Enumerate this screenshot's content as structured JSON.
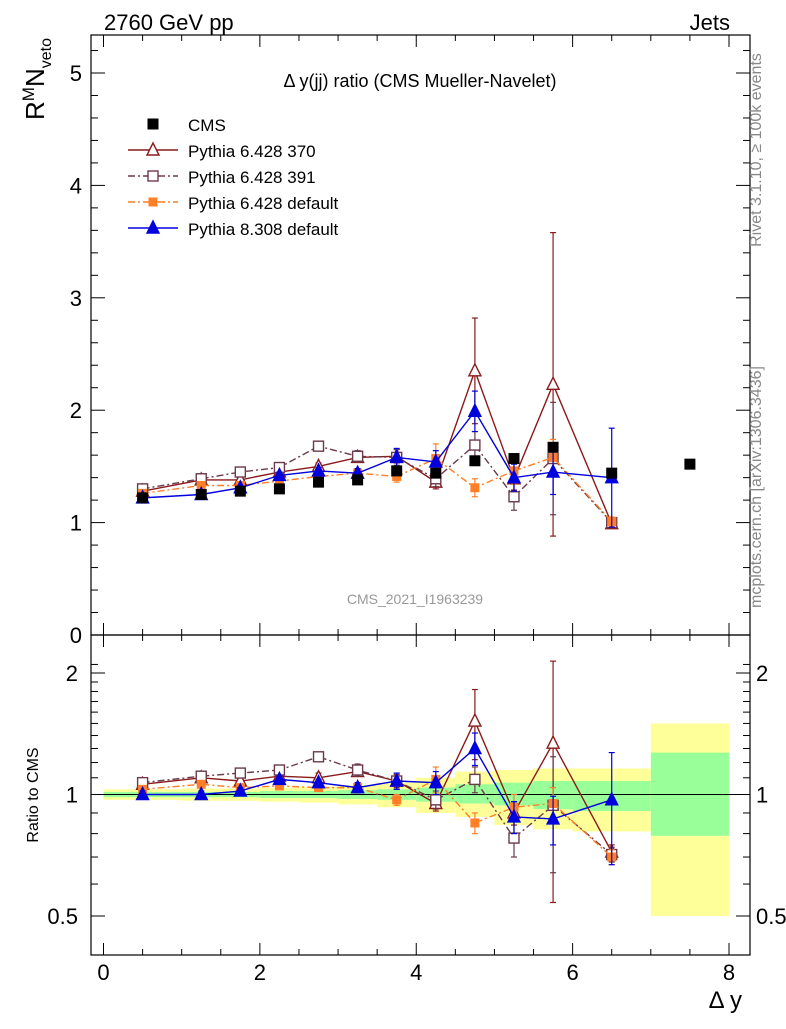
{
  "header": {
    "left": "2760 GeV pp",
    "right": "Jets"
  },
  "side_text": {
    "rivet": "Rivet 3.1.10, ≥ 100k events",
    "mcplots": "mcplots.cern.ch [arXiv:1306.3436]"
  },
  "chart_data": {
    "type": "scatter",
    "title": "Δ y(jj) ratio (CMS Mueller-Navelet)",
    "analysis_id": "CMS_2021_I1963239",
    "xlabel": "Δ y",
    "ylabel": "R^M N_veto",
    "ratio_ylabel": "Ratio to CMS",
    "xlim": [
      -0.2,
      8.2
    ],
    "ylim": [
      0,
      5.35
    ],
    "ratio_ylim": [
      0.42,
      2.25
    ],
    "x_ticks": [
      "0",
      "2",
      "4",
      "6",
      "8"
    ],
    "y_ticks": [
      "0",
      "1",
      "2",
      "3",
      "4",
      "5"
    ],
    "ratio_ticks": [
      "0.5",
      "1",
      "2"
    ],
    "legend_position": "top-left",
    "data": {
      "name": "CMS",
      "color": "#000000",
      "x": [
        0.5,
        1.25,
        1.75,
        2.25,
        2.75,
        3.25,
        3.75,
        4.25,
        4.75,
        5.25,
        5.75,
        6.5,
        7.5
      ],
      "y": [
        1.22,
        1.25,
        1.28,
        1.3,
        1.36,
        1.38,
        1.46,
        1.44,
        1.55,
        1.57,
        1.67,
        1.44,
        1.52
      ]
    },
    "uncertainty_bands": {
      "edges": [
        0,
        0.5,
        1,
        1.5,
        2,
        2.5,
        3,
        3.5,
        4,
        4.5,
        5,
        5.5,
        6,
        7,
        8
      ],
      "stat_lo": [
        0.985,
        0.985,
        0.985,
        0.985,
        0.98,
        0.98,
        0.975,
        0.97,
        0.96,
        0.95,
        0.94,
        0.92,
        0.91,
        0.79
      ],
      "stat_hi": [
        1.015,
        1.015,
        1.015,
        1.015,
        1.02,
        1.02,
        1.025,
        1.03,
        1.04,
        1.06,
        1.07,
        1.08,
        1.08,
        1.27
      ],
      "total_lo": [
        0.97,
        0.97,
        0.965,
        0.965,
        0.96,
        0.955,
        0.945,
        0.93,
        0.9,
        0.88,
        0.84,
        0.82,
        0.81,
        0.5
      ],
      "total_hi": [
        1.03,
        1.03,
        1.035,
        1.035,
        1.04,
        1.045,
        1.055,
        1.07,
        1.1,
        1.14,
        1.15,
        1.16,
        1.16,
        1.5
      ],
      "stat_color": "#99ff99",
      "total_color": "#ffff99"
    },
    "series": [
      {
        "name": "Pythia 6.428 370",
        "color": "#8b1a1a",
        "marker": "triangle-open",
        "dash": "solid",
        "x": [
          0.5,
          1.25,
          1.75,
          2.25,
          2.75,
          3.25,
          3.75,
          4.25,
          4.75,
          5.25,
          5.75,
          6.5
        ],
        "y": [
          1.28,
          1.38,
          1.38,
          1.45,
          1.5,
          1.58,
          1.59,
          1.36,
          2.35,
          1.39,
          2.23,
          0.99
        ],
        "err": [
          0.02,
          0.02,
          0.02,
          0.02,
          0.03,
          0.04,
          0.06,
          0.06,
          0.47,
          0.1,
          1.35,
          0.04
        ],
        "ratio": [
          1.06,
          1.1,
          1.08,
          1.11,
          1.1,
          1.14,
          1.08,
          0.95,
          1.52,
          0.9,
          1.34,
          0.72
        ],
        "ratio_err": [
          0.02,
          0.02,
          0.02,
          0.02,
          0.03,
          0.03,
          0.04,
          0.04,
          0.3,
          0.06,
          0.8,
          0.03
        ]
      },
      {
        "name": "Pythia 6.428 391",
        "color": "#6b3a4a",
        "marker": "square-open",
        "dash": "dashdot",
        "x": [
          0.5,
          1.25,
          1.75,
          2.25,
          2.75,
          3.25,
          3.75,
          4.25,
          4.75,
          5.25,
          5.75,
          6.5
        ],
        "y": [
          1.3,
          1.39,
          1.45,
          1.49,
          1.68,
          1.59,
          1.58,
          1.39,
          1.69,
          1.23,
          1.57,
          1.0
        ],
        "err": [
          0.02,
          0.02,
          0.02,
          0.03,
          0.04,
          0.05,
          0.07,
          0.07,
          0.12,
          0.12,
          0.5,
          0.04
        ],
        "ratio": [
          1.07,
          1.11,
          1.13,
          1.15,
          1.24,
          1.15,
          1.08,
          0.97,
          1.09,
          0.78,
          0.94,
          0.71
        ],
        "ratio_err": [
          0.02,
          0.02,
          0.02,
          0.02,
          0.03,
          0.04,
          0.05,
          0.05,
          0.08,
          0.08,
          0.3,
          0.03
        ]
      },
      {
        "name": "Pythia 6.428 default",
        "color": "#ff7f27",
        "marker": "square-filled",
        "dash": "dashdot",
        "x": [
          0.5,
          1.25,
          1.75,
          2.25,
          2.75,
          3.25,
          3.75,
          4.25,
          4.75,
          5.25,
          5.75,
          6.5
        ],
        "y": [
          1.26,
          1.33,
          1.33,
          1.37,
          1.41,
          1.44,
          1.41,
          1.57,
          1.31,
          1.46,
          1.58,
          1.01
        ],
        "err": [
          0.02,
          0.02,
          0.02,
          0.02,
          0.03,
          0.04,
          0.05,
          0.13,
          0.08,
          0.12,
          0.16,
          0.04
        ],
        "ratio": [
          1.03,
          1.06,
          1.04,
          1.05,
          1.04,
          1.04,
          0.97,
          1.09,
          0.85,
          0.93,
          0.95,
          0.7
        ],
        "ratio_err": [
          0.02,
          0.02,
          0.02,
          0.02,
          0.02,
          0.03,
          0.03,
          0.08,
          0.05,
          0.07,
          0.09,
          0.03
        ]
      },
      {
        "name": "Pythia 8.308 default",
        "color": "#0000dd",
        "marker": "triangle-filled",
        "dash": "solid",
        "x": [
          0.5,
          1.25,
          1.75,
          2.25,
          2.75,
          3.25,
          3.75,
          4.25,
          4.75,
          5.25,
          5.75,
          6.5
        ],
        "y": [
          1.22,
          1.25,
          1.31,
          1.42,
          1.46,
          1.44,
          1.58,
          1.54,
          1.99,
          1.4,
          1.45,
          1.4
        ],
        "err": [
          0.02,
          0.02,
          0.02,
          0.03,
          0.03,
          0.04,
          0.08,
          0.1,
          0.18,
          0.12,
          0.2,
          0.44
        ],
        "ratio": [
          1.0,
          1.0,
          1.02,
          1.09,
          1.07,
          1.04,
          1.08,
          1.07,
          1.3,
          0.88,
          0.87,
          0.97
        ],
        "ratio_err": [
          0.02,
          0.02,
          0.02,
          0.02,
          0.02,
          0.03,
          0.05,
          0.07,
          0.12,
          0.08,
          0.12,
          0.3
        ]
      }
    ]
  }
}
